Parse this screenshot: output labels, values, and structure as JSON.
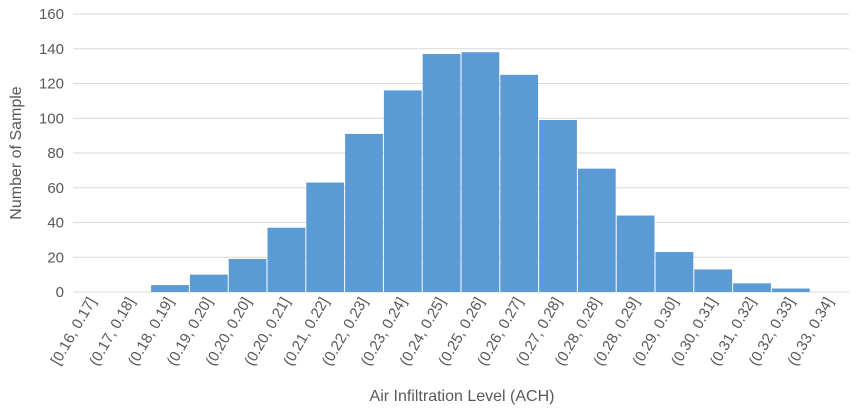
{
  "chart_data": {
    "type": "bar",
    "xlabel": "Air Infiltration Level (ACH)",
    "ylabel": "Number of Sample",
    "ylim": [
      0,
      160
    ],
    "yticks": [
      0,
      20,
      40,
      60,
      80,
      100,
      120,
      140,
      160
    ],
    "grid": true,
    "categories": [
      "[0.16, 0.17]",
      "(0.17, 0.18]",
      "(0.18, 0.19]",
      "(0.19, 0.20]",
      "(0.20, 0.20]",
      "(0.20, 0.21]",
      "(0.21, 0.22]",
      "(0.22, 0.23]",
      "(0.23, 0.24]",
      "(0.24, 0.25]",
      "(0.25, 0.26]",
      "(0.26, 0.27]",
      "(0.27, 0.28]",
      "(0.28, 0.28]",
      "(0.28, 0.29]",
      "(0.29, 0.30]",
      "(0.30, 0.31]",
      "(0.31, 0.32]",
      "(0.32, 0.33]",
      "(0.33, 0.34]"
    ],
    "values": [
      0,
      0,
      4,
      10,
      19,
      37,
      63,
      91,
      116,
      137,
      138,
      125,
      99,
      71,
      44,
      23,
      13,
      5,
      2,
      0
    ],
    "bar_color": "#5b9bd5"
  }
}
